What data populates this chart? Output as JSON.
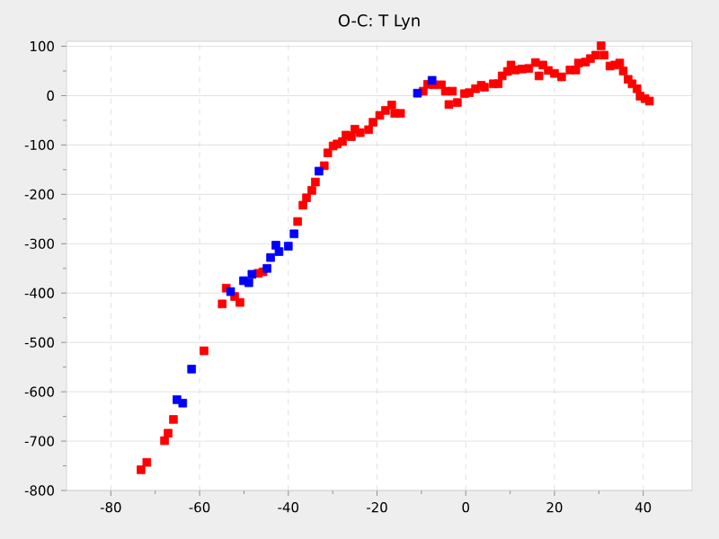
{
  "chart_data": {
    "type": "scatter",
    "title": "O-C: T Lyn",
    "marker": "square",
    "grid": true,
    "xlim": [
      -90,
      51
    ],
    "ylim": [
      -800,
      110
    ],
    "xticks": [
      -80,
      -60,
      -40,
      -20,
      0,
      20,
      40
    ],
    "yticks": [
      -800,
      -700,
      -600,
      -500,
      -400,
      -300,
      -200,
      -100,
      0,
      100
    ],
    "series": [
      {
        "color": "#ff0000",
        "x": [
          -73.2,
          -71.9,
          -67.9,
          -67.1,
          -65.9,
          -59.0,
          -54.9,
          -54.0,
          -52.1,
          -50.9,
          -46.8,
          -45.7,
          -37.9,
          -36.7,
          -35.9,
          -34.7,
          -33.9,
          -31.9,
          -31.1,
          -29.9,
          -29.0,
          -27.8,
          -27.0,
          -25.8,
          -25.0,
          -23.8,
          -21.9,
          -20.9,
          -19.4,
          -18.1,
          -16.7,
          -16.0,
          -14.7,
          -9.6,
          -8.6,
          -7.2,
          -5.5,
          -4.6,
          -3.8,
          -3.0,
          -1.9,
          -0.3,
          0.8,
          2.2,
          3.5,
          4.2,
          6.2,
          7.3,
          8.2,
          9.4,
          10.2,
          11.2,
          12.7,
          14.2,
          15.7,
          16.5,
          17.4,
          18.6,
          20.0,
          21.6,
          23.5,
          24.8,
          25.4,
          27.0,
          28.1,
          29.3,
          30.5,
          31.2,
          32.5,
          33.6,
          34.7,
          35.5,
          36.6,
          37.5,
          38.6,
          39.3,
          40.4,
          41.4
        ],
        "values": [
          -758,
          -743,
          -699,
          -684,
          -656,
          -517,
          -422,
          -390,
          -407,
          -419,
          -360,
          -357,
          -255,
          -222,
          -207,
          -192,
          -175,
          -142,
          -116,
          -102,
          -98,
          -93,
          -80,
          -83,
          -68,
          -75,
          -69,
          -54,
          -40,
          -30,
          -19,
          -36,
          -36,
          9,
          23,
          22,
          22,
          9,
          -18,
          9,
          -14,
          4,
          6,
          14,
          21,
          17,
          24,
          24,
          40,
          49,
          62,
          52,
          54,
          55,
          67,
          40,
          62,
          51,
          45,
          38,
          52,
          52,
          66,
          68,
          75,
          82,
          101,
          82,
          60,
          62,
          66,
          50,
          33,
          24,
          14,
          -1,
          -6,
          -11
        ]
      },
      {
        "color": "#0000ff",
        "x": [
          -65.1,
          -63.8,
          -61.8,
          -53.0,
          -50.1,
          -48.9,
          -48.2,
          -44.8,
          -44.0,
          -42.8,
          -42.1,
          -40.0,
          -38.7,
          -33.1,
          -10.9,
          -7.6
        ],
        "values": [
          -616,
          -623,
          -554,
          -397,
          -375,
          -379,
          -362,
          -350,
          -328,
          -303,
          -316,
          -305,
          -280,
          -153,
          5,
          31
        ]
      }
    ]
  }
}
